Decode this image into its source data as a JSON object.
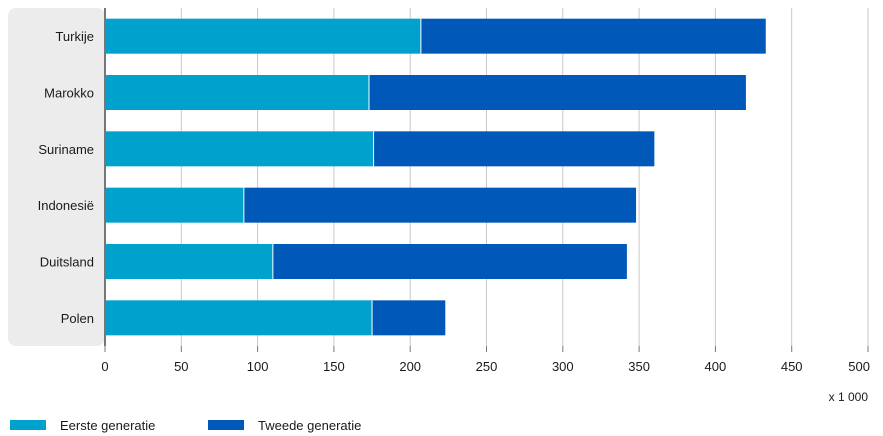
{
  "chart_data": {
    "type": "bar",
    "orientation": "horizontal",
    "stacked": true,
    "categories": [
      "Turkije",
      "Marokko",
      "Suriname",
      "Indonesië",
      "Duitsland",
      "Polen"
    ],
    "series": [
      {
        "name": "Eerste generatie",
        "color": "#00a1cd",
        "values": [
          207,
          173,
          176,
          91,
          110,
          175
        ]
      },
      {
        "name": "Tweede generatie",
        "color": "#0058b8",
        "values": [
          226,
          247,
          184,
          257,
          232,
          48
        ]
      }
    ],
    "xlim": [
      0,
      500
    ],
    "xticks": [
      0,
      50,
      100,
      150,
      200,
      250,
      300,
      350,
      400,
      450,
      500
    ],
    "unit": "x 1 000",
    "grid": true,
    "legend_position": "bottom-left"
  }
}
